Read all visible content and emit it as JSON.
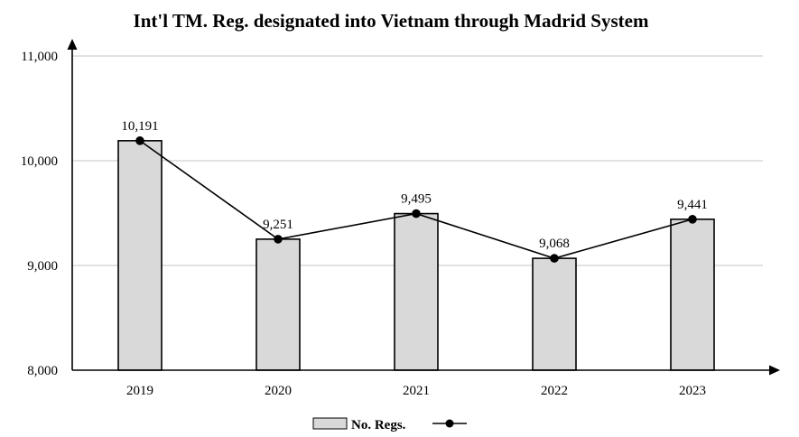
{
  "chart_data": {
    "type": "bar",
    "title": "Int'l TM. Reg. designated into Vietnam through Madrid System",
    "xlabel": "",
    "ylabel": "",
    "categories": [
      "2019",
      "2020",
      "2021",
      "2022",
      "2023"
    ],
    "series": [
      {
        "name": "No. Regs.",
        "type": "bar",
        "values": [
          10191,
          9251,
          9495,
          9068,
          9441
        ]
      },
      {
        "type": "line",
        "values": [
          10191,
          9251,
          9495,
          9068,
          9441
        ]
      }
    ],
    "data_labels": [
      "10,191",
      "9,251",
      "9,495",
      "9,068",
      "9,441"
    ],
    "ylim": [
      8000,
      11000
    ],
    "yticks": [
      8000,
      9000,
      10000,
      11000
    ],
    "ytick_labels": [
      "8,000",
      "9,000",
      "10,000",
      "11,000"
    ],
    "grid": true,
    "legend_position": "bottom",
    "colors": {
      "bar_fill": "#d9d9d9",
      "bar_stroke": "#000000",
      "line": "#000000",
      "grid": "#d0d0d0"
    }
  }
}
